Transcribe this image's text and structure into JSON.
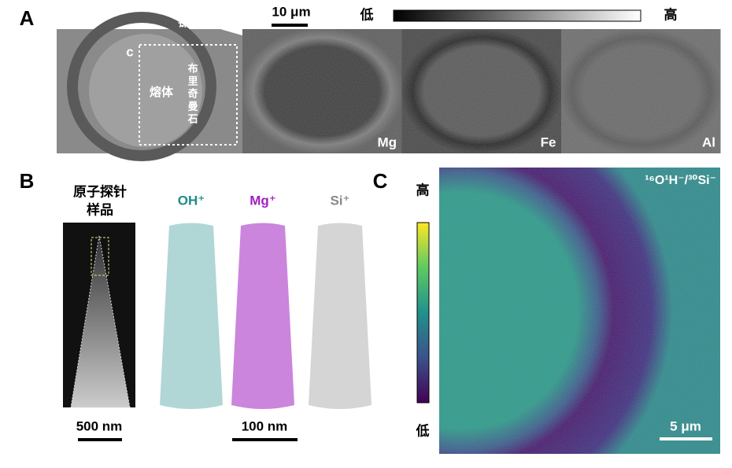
{
  "panel_a": {
    "label": "A",
    "nickel_label": "镍片",
    "inset_label": "c",
    "melt_label": "熔体",
    "bridgmanite_label": "布里奇曼石",
    "scale_bar": "10 μm",
    "colorbar_low": "低",
    "colorbar_high": "高",
    "maps": [
      "Mg",
      "Fe",
      "Al"
    ]
  },
  "panel_b": {
    "label": "B",
    "sample_label_lines": [
      "原子探针",
      "样品"
    ],
    "ions": [
      "OH⁺",
      "Mg⁺",
      "Si⁺"
    ],
    "scale_bar_left": "500 nm",
    "scale_bar_right": "100 nm"
  },
  "panel_c": {
    "label": "C",
    "colorbar_high": "高",
    "colorbar_low": "低",
    "ratio_label": "¹⁶O¹H⁻/³⁰Si⁻",
    "scale_bar": "5 μm"
  }
}
